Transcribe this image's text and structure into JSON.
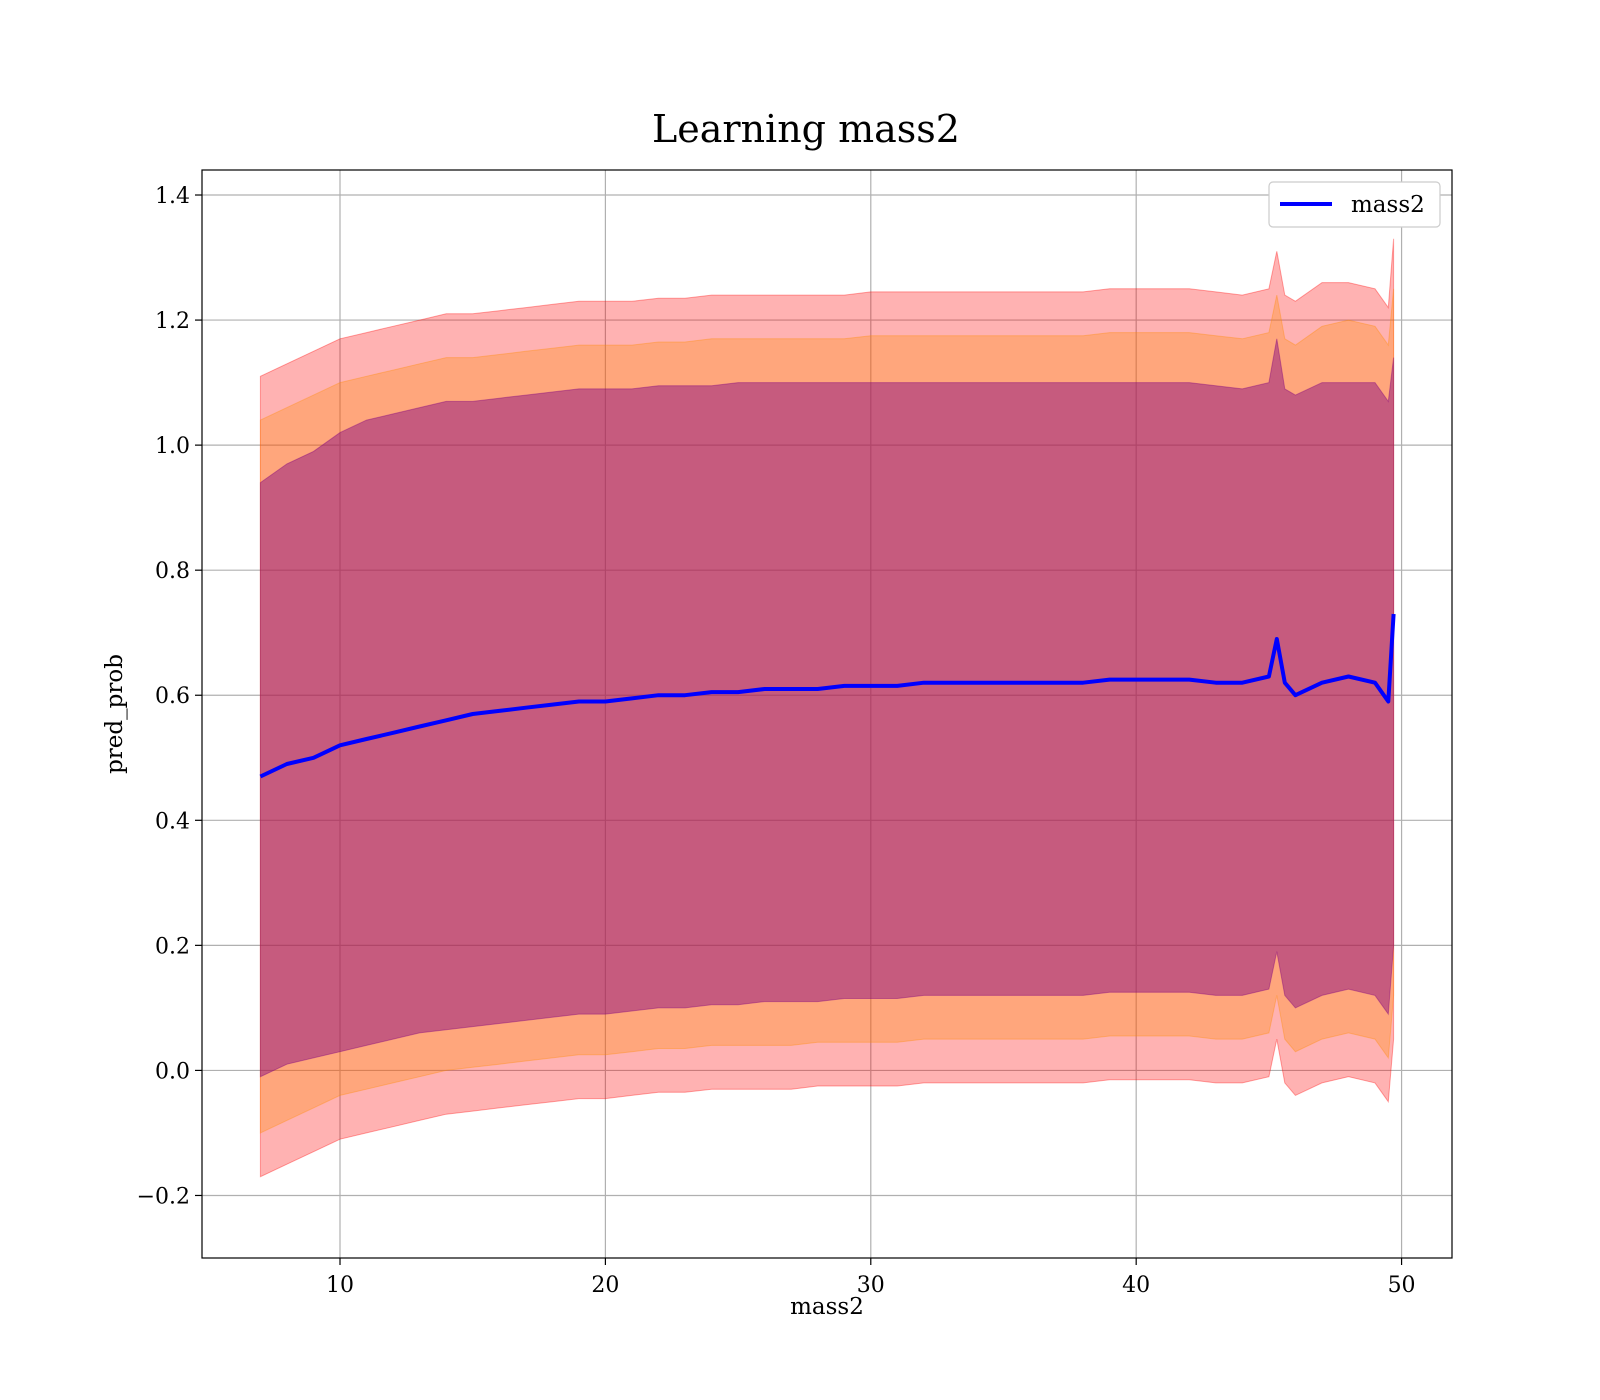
{
  "chart_data": {
    "type": "line",
    "title": "Learning mass2",
    "xlabel": "mass2",
    "ylabel": "pred_prob",
    "xlim": [
      4.8,
      51.9
    ],
    "ylim": [
      -0.3,
      1.44
    ],
    "xticks": [
      10,
      20,
      30,
      40,
      50
    ],
    "xtick_labels": [
      "10",
      "20",
      "30",
      "40",
      "50"
    ],
    "yticks": [
      -0.2,
      0.0,
      0.2,
      0.4,
      0.6,
      0.8,
      1.0,
      1.2,
      1.4
    ],
    "ytick_labels": [
      "−0.2",
      "0.0",
      "0.2",
      "0.4",
      "0.6",
      "0.8",
      "1.0",
      "1.2",
      "1.4"
    ],
    "grid": true,
    "legend": {
      "location": "upper right",
      "entries": [
        "mass2"
      ]
    },
    "colors": {
      "line": "#0000ff",
      "band_outer": "#ff0000",
      "band_middle": "#ff8c00",
      "band_inner": "#800080"
    },
    "series": [
      {
        "name": "mass2",
        "x": [
          7.0,
          8.0,
          9.0,
          10.0,
          11.0,
          12.0,
          13.0,
          14.0,
          15.0,
          16.0,
          17.0,
          18.0,
          19.0,
          20.0,
          21.0,
          22.0,
          23.0,
          24.0,
          25.0,
          26.0,
          27.0,
          28.0,
          29.0,
          30.0,
          31.0,
          32.0,
          33.0,
          34.0,
          35.0,
          36.0,
          37.0,
          38.0,
          39.0,
          40.0,
          41.0,
          42.0,
          43.0,
          44.0,
          45.0,
          45.3,
          45.6,
          46.0,
          47.0,
          48.0,
          49.0,
          49.5,
          49.7
        ],
        "y": [
          0.47,
          0.49,
          0.5,
          0.52,
          0.53,
          0.54,
          0.55,
          0.56,
          0.57,
          0.575,
          0.58,
          0.585,
          0.59,
          0.59,
          0.595,
          0.6,
          0.6,
          0.605,
          0.605,
          0.61,
          0.61,
          0.61,
          0.615,
          0.615,
          0.615,
          0.62,
          0.62,
          0.62,
          0.62,
          0.62,
          0.62,
          0.62,
          0.625,
          0.625,
          0.625,
          0.625,
          0.62,
          0.62,
          0.63,
          0.69,
          0.62,
          0.6,
          0.62,
          0.63,
          0.62,
          0.59,
          0.73
        ],
        "inner_band": {
          "upper": [
            0.94,
            0.97,
            0.99,
            1.02,
            1.04,
            1.05,
            1.06,
            1.07,
            1.07,
            1.075,
            1.08,
            1.085,
            1.09,
            1.09,
            1.09,
            1.095,
            1.095,
            1.095,
            1.1,
            1.1,
            1.1,
            1.1,
            1.1,
            1.1,
            1.1,
            1.1,
            1.1,
            1.1,
            1.1,
            1.1,
            1.1,
            1.1,
            1.1,
            1.1,
            1.1,
            1.1,
            1.095,
            1.09,
            1.1,
            1.17,
            1.09,
            1.08,
            1.1,
            1.1,
            1.1,
            1.07,
            1.14
          ],
          "lower": [
            -0.01,
            0.01,
            0.02,
            0.03,
            0.04,
            0.05,
            0.06,
            0.065,
            0.07,
            0.075,
            0.08,
            0.085,
            0.09,
            0.09,
            0.095,
            0.1,
            0.1,
            0.105,
            0.105,
            0.11,
            0.11,
            0.11,
            0.115,
            0.115,
            0.115,
            0.12,
            0.12,
            0.12,
            0.12,
            0.12,
            0.12,
            0.12,
            0.125,
            0.125,
            0.125,
            0.125,
            0.12,
            0.12,
            0.13,
            0.19,
            0.12,
            0.1,
            0.12,
            0.13,
            0.12,
            0.09,
            0.2
          ]
        },
        "middle_band": {
          "upper": [
            1.04,
            1.06,
            1.08,
            1.1,
            1.11,
            1.12,
            1.13,
            1.14,
            1.14,
            1.145,
            1.15,
            1.155,
            1.16,
            1.16,
            1.16,
            1.165,
            1.165,
            1.17,
            1.17,
            1.17,
            1.17,
            1.17,
            1.17,
            1.175,
            1.175,
            1.175,
            1.175,
            1.175,
            1.175,
            1.175,
            1.175,
            1.175,
            1.18,
            1.18,
            1.18,
            1.18,
            1.175,
            1.17,
            1.18,
            1.24,
            1.17,
            1.16,
            1.19,
            1.2,
            1.19,
            1.16,
            1.25
          ],
          "lower": [
            -0.1,
            -0.08,
            -0.06,
            -0.04,
            -0.03,
            -0.02,
            -0.01,
            0.0,
            0.005,
            0.01,
            0.015,
            0.02,
            0.025,
            0.025,
            0.03,
            0.035,
            0.035,
            0.04,
            0.04,
            0.04,
            0.04,
            0.045,
            0.045,
            0.045,
            0.045,
            0.05,
            0.05,
            0.05,
            0.05,
            0.05,
            0.05,
            0.05,
            0.055,
            0.055,
            0.055,
            0.055,
            0.05,
            0.05,
            0.06,
            0.12,
            0.05,
            0.03,
            0.05,
            0.06,
            0.05,
            0.02,
            0.12
          ]
        },
        "outer_band": {
          "upper": [
            1.11,
            1.13,
            1.15,
            1.17,
            1.18,
            1.19,
            1.2,
            1.21,
            1.21,
            1.215,
            1.22,
            1.225,
            1.23,
            1.23,
            1.23,
            1.235,
            1.235,
            1.24,
            1.24,
            1.24,
            1.24,
            1.24,
            1.24,
            1.245,
            1.245,
            1.245,
            1.245,
            1.245,
            1.245,
            1.245,
            1.245,
            1.245,
            1.25,
            1.25,
            1.25,
            1.25,
            1.245,
            1.24,
            1.25,
            1.31,
            1.24,
            1.23,
            1.26,
            1.26,
            1.25,
            1.22,
            1.33
          ],
          "lower": [
            -0.17,
            -0.15,
            -0.13,
            -0.11,
            -0.1,
            -0.09,
            -0.08,
            -0.07,
            -0.065,
            -0.06,
            -0.055,
            -0.05,
            -0.045,
            -0.045,
            -0.04,
            -0.035,
            -0.035,
            -0.03,
            -0.03,
            -0.03,
            -0.03,
            -0.025,
            -0.025,
            -0.025,
            -0.025,
            -0.02,
            -0.02,
            -0.02,
            -0.02,
            -0.02,
            -0.02,
            -0.02,
            -0.015,
            -0.015,
            -0.015,
            -0.015,
            -0.02,
            -0.02,
            -0.01,
            0.05,
            -0.02,
            -0.04,
            -0.02,
            -0.01,
            -0.02,
            -0.05,
            0.05
          ]
        }
      }
    ]
  }
}
